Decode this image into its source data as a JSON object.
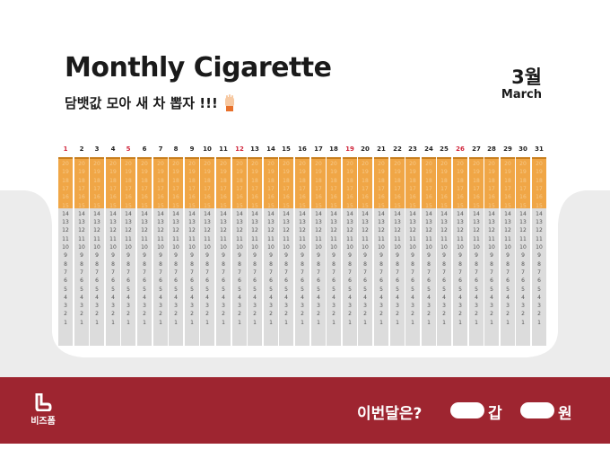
{
  "header": {
    "title": "Monthly Cigarette",
    "subtitle": "담뱃값 모아 새 차 뽑자 !!!",
    "month_number": "3월",
    "month_name": "March"
  },
  "calendar": {
    "days": [
      1,
      2,
      3,
      4,
      5,
      6,
      7,
      8,
      9,
      10,
      11,
      12,
      13,
      14,
      15,
      16,
      17,
      18,
      19,
      20,
      21,
      22,
      23,
      24,
      25,
      26,
      27,
      28,
      29,
      30,
      31
    ],
    "highlighted_days": [
      1,
      5,
      12,
      19,
      26
    ],
    "cigarette_numbers": [
      20,
      19,
      18,
      17,
      16,
      15,
      14,
      13,
      12,
      11,
      10,
      9,
      8,
      7,
      6,
      5,
      4,
      3,
      2,
      1
    ],
    "filter_count": 6
  },
  "footer": {
    "brand": "비즈폼",
    "question": "이번달은?",
    "unit_packs": "갑",
    "unit_won": "원"
  },
  "colors": {
    "filter": "#f0a646",
    "paper": "#dcdcdc",
    "footer_bg": "#9e2530",
    "highlight_day": "#d0243a",
    "background_shape": "#ececec"
  }
}
